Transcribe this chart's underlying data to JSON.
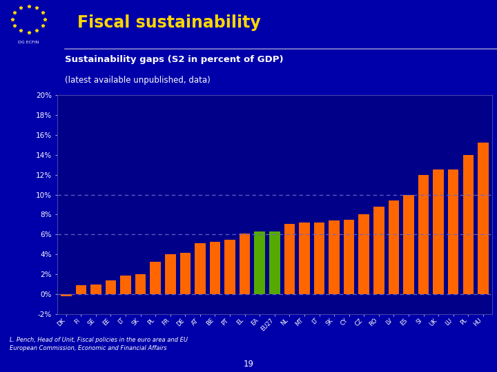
{
  "title_main": "Fiscal sustainability",
  "subtitle1": "Sustainability gaps (S2 in percent of GDP)",
  "subtitle2": "(latest available unpublished, data)",
  "footer": "L. Pench, Head of Unit, Fiscal policies in the euro area and EU\nEuropean Commission, Economic and Financial Affairs",
  "page_number": "19",
  "values": [
    -0.2,
    0.9,
    1.0,
    1.4,
    1.9,
    2.0,
    3.3,
    4.0,
    4.2,
    5.1,
    5.3,
    5.5,
    6.1,
    6.3,
    6.3,
    7.1,
    7.2,
    7.2,
    7.4,
    7.5,
    8.0,
    8.8,
    9.4,
    10.0,
    12.0,
    12.5,
    12.5,
    14.0,
    15.2
  ],
  "bar_colors": [
    "#FF6600",
    "#FF6600",
    "#FF6600",
    "#FF6600",
    "#FF6600",
    "#FF6600",
    "#FF6600",
    "#FF6600",
    "#FF6600",
    "#FF6600",
    "#FF6600",
    "#FF6600",
    "#FF6600",
    "#55AA00",
    "#55AA00",
    "#FF6600",
    "#FF6600",
    "#FF6600",
    "#FF6600",
    "#FF6600",
    "#FF6600",
    "#FF6600",
    "#FF6600",
    "#FF6600",
    "#FF6600",
    "#FF6600",
    "#FF6600",
    "#FF6600",
    "#FF6600"
  ],
  "x_labels": [
    "DK",
    "FI",
    "SE",
    "EE",
    "LT",
    "SK",
    "PL",
    "FR",
    "DE",
    "AT",
    "BE",
    "PT",
    "EL",
    "EA",
    "EU27",
    "NL",
    "MT",
    "LT",
    "SK",
    "CY",
    "CZ",
    "RO",
    "LV",
    "ES",
    "SI",
    "UK",
    "LU",
    "PL",
    "HU"
  ],
  "ylim": [
    -2,
    20
  ],
  "yticks": [
    -2,
    0,
    2,
    4,
    6,
    8,
    10,
    12,
    14,
    16,
    18,
    20
  ],
  "ytick_labels": [
    "-2%",
    "0%",
    "2%",
    "4%",
    "6%",
    "8%",
    "10%",
    "12%",
    "14%",
    "16%",
    "18%",
    "20%"
  ],
  "hlines": [
    0.0,
    6.0,
    10.0
  ],
  "bg_color": "#0000AA",
  "plot_bg_color": "#000088",
  "title_color": "#FFD700",
  "subtitle_color": "#FFFFFF",
  "tick_color": "#FFFFFF",
  "footer_color": "#FFFFFF",
  "dashed_line_color": "#6666CC"
}
